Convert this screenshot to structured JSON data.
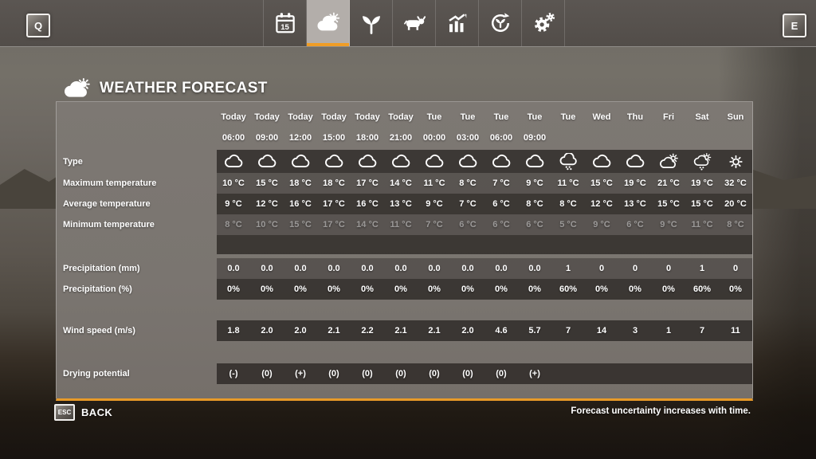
{
  "colors": {
    "accent_orange": "#ef9d27"
  },
  "top_bar": {
    "left_hotkey": "Q",
    "right_hotkey": "E",
    "tabs": [
      {
        "name": "calendar",
        "badge": "15",
        "active": false
      },
      {
        "name": "weather",
        "active": true
      },
      {
        "name": "plants",
        "active": false
      },
      {
        "name": "animals",
        "active": false
      },
      {
        "name": "statistics",
        "active": false
      },
      {
        "name": "growth",
        "active": false
      },
      {
        "name": "settings",
        "active": false
      }
    ]
  },
  "page": {
    "title": "WEATHER FORECAST"
  },
  "forecast": {
    "columns": [
      {
        "day": "Today",
        "time": "06:00"
      },
      {
        "day": "Today",
        "time": "09:00"
      },
      {
        "day": "Today",
        "time": "12:00"
      },
      {
        "day": "Today",
        "time": "15:00"
      },
      {
        "day": "Today",
        "time": "18:00"
      },
      {
        "day": "Today",
        "time": "21:00"
      },
      {
        "day": "Tue",
        "time": "00:00"
      },
      {
        "day": "Tue",
        "time": "03:00"
      },
      {
        "day": "Tue",
        "time": "06:00"
      },
      {
        "day": "Tue",
        "time": "09:00"
      },
      {
        "day": "Tue",
        "time": ""
      },
      {
        "day": "Wed",
        "time": ""
      },
      {
        "day": "Thu",
        "time": ""
      },
      {
        "day": "Fri",
        "time": ""
      },
      {
        "day": "Sat",
        "time": ""
      },
      {
        "day": "Sun",
        "time": ""
      }
    ],
    "rows": [
      {
        "id": "type",
        "label": "Type",
        "kind": "icons",
        "band": "dark",
        "values": [
          "cloud",
          "cloud",
          "cloud",
          "cloud",
          "cloud",
          "cloud",
          "cloud",
          "cloud",
          "cloud",
          "cloud",
          "rain",
          "cloud",
          "cloud",
          "cloudsun",
          "sunshower",
          "sun"
        ]
      },
      {
        "id": "max",
        "label": "Maximum temperature",
        "kind": "values",
        "band": "medium",
        "values": [
          "10 °C",
          "15 °C",
          "18 °C",
          "18 °C",
          "17 °C",
          "14 °C",
          "11 °C",
          "8 °C",
          "7 °C",
          "9 °C",
          "11 °C",
          "15 °C",
          "19 °C",
          "21 °C",
          "19 °C",
          "32 °C"
        ]
      },
      {
        "id": "avg",
        "label": "Average temperature",
        "kind": "values",
        "band": "dark",
        "values": [
          "9 °C",
          "12 °C",
          "16 °C",
          "17 °C",
          "16 °C",
          "13 °C",
          "9 °C",
          "7 °C",
          "6 °C",
          "8 °C",
          "8 °C",
          "12 °C",
          "13 °C",
          "15 °C",
          "15 °C",
          "20 °C"
        ]
      },
      {
        "id": "min",
        "label": "Minimum temperature",
        "kind": "values",
        "band": "medium",
        "dim": true,
        "values": [
          "8 °C",
          "10 °C",
          "15 °C",
          "17 °C",
          "14 °C",
          "11 °C",
          "7 °C",
          "6 °C",
          "6 °C",
          "6 °C",
          "5 °C",
          "9 °C",
          "6 °C",
          "9 °C",
          "11 °C",
          "8 °C"
        ]
      },
      {
        "id": "sp1",
        "label": "",
        "kind": "spacer",
        "band": "dark",
        "values": []
      },
      {
        "id": "gap1",
        "label": "",
        "kind": "spacer",
        "band": "none",
        "values": []
      },
      {
        "id": "mm",
        "label": "Precipitation (mm)",
        "kind": "values",
        "band": "medium",
        "values": [
          "0.0",
          "0.0",
          "0.0",
          "0.0",
          "0.0",
          "0.0",
          "0.0",
          "0.0",
          "0.0",
          "0.0",
          "1",
          "0",
          "0",
          "0",
          "1",
          "0"
        ]
      },
      {
        "id": "pct",
        "label": "Precipitation (%)",
        "kind": "values",
        "band": "dark",
        "values": [
          "0%",
          "0%",
          "0%",
          "0%",
          "0%",
          "0%",
          "0%",
          "0%",
          "0%",
          "0%",
          "60%",
          "0%",
          "0%",
          "0%",
          "60%",
          "0%"
        ]
      },
      {
        "id": "sp2",
        "label": "",
        "kind": "spacer",
        "band": "none",
        "values": []
      },
      {
        "id": "wind",
        "label": "Wind speed (m/s)",
        "kind": "values",
        "band": "dark",
        "values": [
          "1.8",
          "2.0",
          "2.0",
          "2.1",
          "2.2",
          "2.1",
          "2.1",
          "2.0",
          "4.6",
          "5.7",
          "7",
          "14",
          "3",
          "1",
          "7",
          "11"
        ]
      },
      {
        "id": "sp3",
        "label": "",
        "kind": "spacer",
        "band": "none",
        "values": []
      },
      {
        "id": "dry",
        "label": "Drying potential",
        "kind": "values",
        "band": "dark",
        "values": [
          "(-)",
          "(0)",
          "(+)",
          "(0)",
          "(0)",
          "(0)",
          "(0)",
          "(0)",
          "(0)",
          "(+)",
          "",
          "",
          "",
          "",
          "",
          ""
        ]
      },
      {
        "id": "sp4",
        "label": "",
        "kind": "spacer",
        "band": "none",
        "values": []
      }
    ]
  },
  "footer": {
    "back_hotkey": "ESC",
    "back_label": "BACK",
    "note": "Forecast uncertainty increases with time."
  }
}
